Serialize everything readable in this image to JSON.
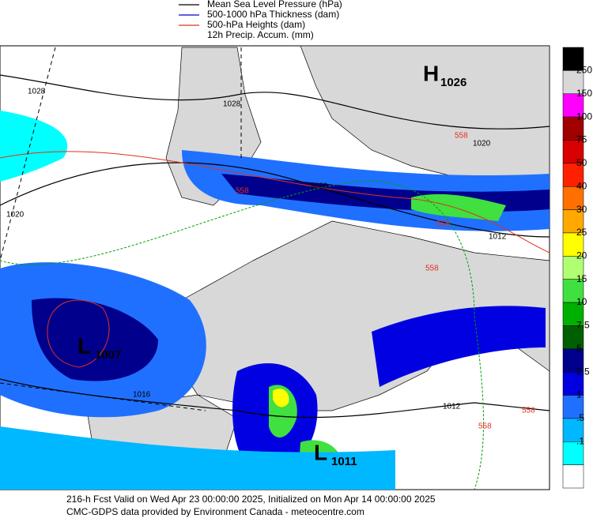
{
  "legend": [
    {
      "label": "Mean Sea Level Pressure (hPa)",
      "color": "#000000"
    },
    {
      "label": "500-1000 hPa Thickness (dam)",
      "color": "#0000cc"
    },
    {
      "label": "500-hPa Heights (dam)",
      "color": "#e03020"
    },
    {
      "label": "12h Precip. Accum. (mm)",
      "color": null
    }
  ],
  "colorbar": {
    "labels": [
      "250",
      "150",
      "100",
      "75",
      "50",
      "40",
      "30",
      "25",
      "20",
      "15",
      "10",
      "7.5",
      "5",
      "2.5",
      "1",
      ".5",
      ".1"
    ],
    "colors": [
      "#000000",
      "#d8d8d8",
      "#ff00ff",
      "#a00000",
      "#d80000",
      "#ff2000",
      "#ff7000",
      "#ffa800",
      "#ffff00",
      "#b0ff70",
      "#40e040",
      "#00b000",
      "#006000",
      "#00008c",
      "#0000e0",
      "#2070ff",
      "#00b8ff",
      "#00ffff",
      "#ffffff"
    ]
  },
  "centers": [
    {
      "letter": "H",
      "value": "1026"
    },
    {
      "letter": "L",
      "value": "1007"
    },
    {
      "letter": "L",
      "value": "1011"
    }
  ],
  "contour_labels": [
    "1028",
    "1028",
    "1020",
    "1020",
    "1012",
    "1016",
    "1012",
    "1028",
    "558",
    "558",
    "558",
    "558",
    "558",
    "558"
  ],
  "footer": [
    "216-h Fcst Valid on Wed Apr 23 00:00:00 2025, Initialized on Mon Apr 14 00:00:00 2025",
    "CMC-GDPS data provided by Environment Canada - meteocentre.com"
  ]
}
